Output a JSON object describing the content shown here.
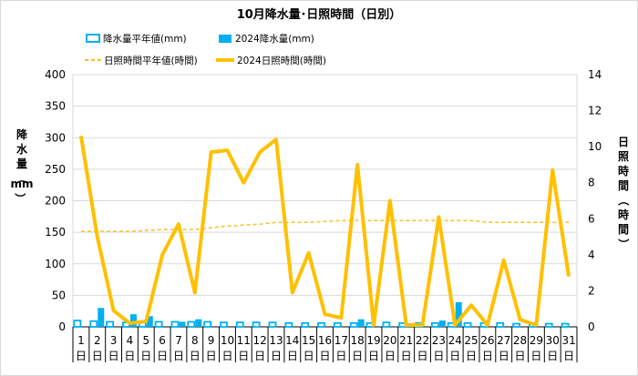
{
  "chart_data": {
    "type": "bar+line",
    "title": "10月降水量･日照時間（日別）",
    "ylabel_left": [
      "降",
      "水",
      "量",
      "（",
      "mm",
      "）"
    ],
    "ylabel_right": [
      "日",
      "照",
      "時",
      "間",
      "（",
      "時",
      "間",
      "）"
    ],
    "y_left": {
      "min": 0,
      "max": 400,
      "ticks": [
        0,
        50,
        100,
        150,
        200,
        250,
        300,
        350,
        400
      ]
    },
    "y_right": {
      "min": 0,
      "max": 14,
      "ticks": [
        0,
        2,
        4,
        6,
        8,
        10,
        12,
        14
      ]
    },
    "x_ticks": [
      "1",
      "2",
      "3",
      "4",
      "5",
      "6",
      "7",
      "8",
      "9",
      "10",
      "11",
      "12",
      "13",
      "14",
      "15",
      "16",
      "17",
      "18",
      "19",
      "20",
      "21",
      "22",
      "23",
      "24",
      "25",
      "26",
      "27",
      "28",
      "29",
      "30",
      "31"
    ],
    "x_unit": "日",
    "grid": true,
    "legend": [
      {
        "label": "降水量平年値(mm)",
        "color": "#00b0f0",
        "kind": "hollow-bar"
      },
      {
        "label": "2024降水量(mm)",
        "color": "#00b0f0",
        "kind": "bar"
      },
      {
        "label": "日照時間平年値(時間)",
        "color": "#f9bf2a",
        "kind": "dash"
      },
      {
        "label": "2024日照時間(時間)",
        "color": "#ffc000",
        "kind": "line"
      }
    ],
    "series": [
      {
        "name": "降水量平年値(mm)",
        "axis": "left",
        "type": "bar",
        "values": [
          10,
          9,
          8,
          7,
          8,
          8,
          8,
          8,
          8,
          7,
          7,
          7,
          7,
          6,
          6,
          6,
          6,
          6,
          6,
          7,
          6,
          6,
          6,
          6,
          6,
          6,
          6,
          5,
          5,
          5,
          5
        ]
      },
      {
        "name": "2024降水量(mm)",
        "axis": "left",
        "type": "bar",
        "values": [
          0,
          30,
          0,
          20,
          17,
          0,
          8,
          12,
          0,
          0,
          0,
          0,
          0,
          0,
          0,
          0,
          0,
          12,
          0,
          0,
          0,
          0,
          10,
          39,
          0,
          0,
          0,
          0,
          0,
          0,
          0
        ]
      },
      {
        "name": "日照時間平年値(時間)",
        "axis": "right",
        "type": "line",
        "dashed": true,
        "values": [
          5.3,
          5.3,
          5.3,
          5.3,
          5.35,
          5.4,
          5.4,
          5.4,
          5.5,
          5.6,
          5.65,
          5.7,
          5.8,
          5.8,
          5.8,
          5.85,
          5.9,
          5.9,
          5.9,
          5.9,
          5.9,
          5.9,
          5.9,
          5.9,
          5.9,
          5.8,
          5.8,
          5.8,
          5.8,
          5.8,
          5.8
        ]
      },
      {
        "name": "2024日照時間(時間)",
        "axis": "right",
        "type": "line",
        "values": [
          10.6,
          5.0,
          0.9,
          0.2,
          0.3,
          4.0,
          5.7,
          1.9,
          9.7,
          9.8,
          8.0,
          9.7,
          10.4,
          1.9,
          4.1,
          0.7,
          0.5,
          9.0,
          0.1,
          7.0,
          0.1,
          0.1,
          6.1,
          0.1,
          1.2,
          0.1,
          3.7,
          0.4,
          0.1,
          8.7,
          2.8
        ]
      }
    ]
  }
}
